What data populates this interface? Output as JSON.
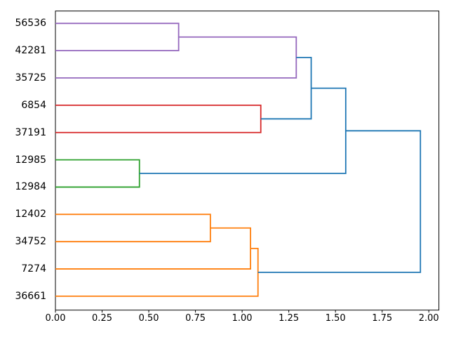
{
  "figure": {
    "background": "#ffffff",
    "border_color": "#000000"
  },
  "chart_data": {
    "type": "dendrogram",
    "title": "",
    "xlabel": "",
    "ylabel": "",
    "orientation": "right",
    "grid": false,
    "xlim": [
      0,
      2.054
    ],
    "ylim": [
      0,
      110
    ],
    "x_axis": {
      "ticks": [
        {
          "value": 0.0,
          "label": "0.00"
        },
        {
          "value": 0.25,
          "label": "0.25"
        },
        {
          "value": 0.5,
          "label": "0.50"
        },
        {
          "value": 0.75,
          "label": "0.75"
        },
        {
          "value": 1.0,
          "label": "1.00"
        },
        {
          "value": 1.25,
          "label": "1.25"
        },
        {
          "value": 1.5,
          "label": "1.50"
        },
        {
          "value": 1.75,
          "label": "1.75"
        },
        {
          "value": 2.0,
          "label": "2.00"
        }
      ]
    },
    "leaves": [
      {
        "label": "56536",
        "y": 105
      },
      {
        "label": "42281",
        "y": 95
      },
      {
        "label": "35725",
        "y": 85
      },
      {
        "label": "6854",
        "y": 75
      },
      {
        "label": "37191",
        "y": 65
      },
      {
        "label": "12985",
        "y": 55
      },
      {
        "label": "12984",
        "y": 45
      },
      {
        "label": "12402",
        "y": 35
      },
      {
        "label": "34752",
        "y": 25
      },
      {
        "label": "7274",
        "y": 15
      },
      {
        "label": "36661",
        "y": 5
      }
    ],
    "colors": {
      "blue": "#1f77b4",
      "orange": "#ff7f0e",
      "green": "#2ca02c",
      "red": "#d62728",
      "purple": "#9467bd"
    },
    "links": [
      {
        "x": 0.66,
        "color": "#9467bd",
        "children": [
          {
            "y": 105,
            "x": 0
          },
          {
            "y": 95,
            "x": 0
          }
        ]
      },
      {
        "x": 1.29,
        "color": "#9467bd",
        "children": [
          {
            "y": 100,
            "x": 0.66
          },
          {
            "y": 85,
            "x": 0
          }
        ]
      },
      {
        "x": 1.1,
        "color": "#d62728",
        "children": [
          {
            "y": 75,
            "x": 0
          },
          {
            "y": 65,
            "x": 0
          }
        ]
      },
      {
        "x": 0.45,
        "color": "#2ca02c",
        "children": [
          {
            "y": 55,
            "x": 0
          },
          {
            "y": 45,
            "x": 0
          }
        ]
      },
      {
        "x": 0.83,
        "color": "#ff7f0e",
        "children": [
          {
            "y": 35,
            "x": 0
          },
          {
            "y": 25,
            "x": 0
          }
        ]
      },
      {
        "x": 1.045,
        "color": "#ff7f0e",
        "children": [
          {
            "y": 30,
            "x": 0.83
          },
          {
            "y": 15,
            "x": 0
          }
        ]
      },
      {
        "x": 1.085,
        "color": "#ff7f0e",
        "children": [
          {
            "y": 22.5,
            "x": 1.045
          },
          {
            "y": 5,
            "x": 0
          }
        ]
      },
      {
        "x": 1.37,
        "color": "#1f77b4",
        "children": [
          {
            "y": 92.5,
            "x": 1.29
          },
          {
            "y": 70,
            "x": 1.1
          }
        ]
      },
      {
        "x": 1.555,
        "color": "#1f77b4",
        "children": [
          {
            "y": 81.25,
            "x": 1.37
          },
          {
            "y": 50,
            "x": 0.45
          }
        ]
      },
      {
        "x": 1.955,
        "color": "#1f77b4",
        "children": [
          {
            "y": 65.625,
            "x": 1.555
          },
          {
            "y": 13.75,
            "x": 1.085
          }
        ]
      }
    ]
  }
}
